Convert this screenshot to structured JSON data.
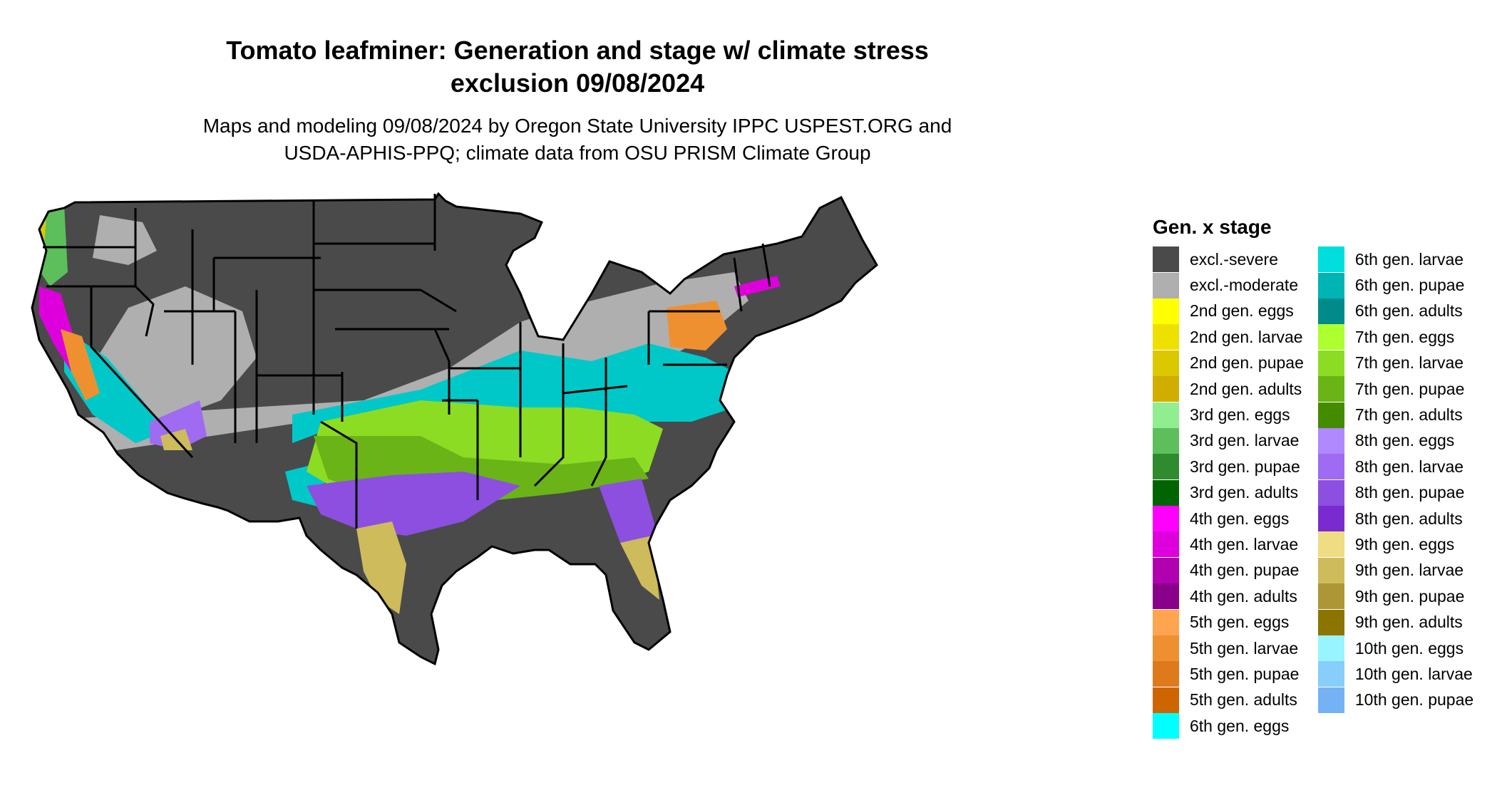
{
  "title_line1": "Tomato leafminer: Generation and stage w/ climate stress",
  "title_line2": "exclusion 09/08/2024",
  "subtitle_line1": "Maps and modeling 09/08/2024 by Oregon State University IPPC USPEST.ORG and",
  "subtitle_line2": "USDA-APHIS-PPQ; climate data from OSU PRISM Climate Group",
  "legend": {
    "title": "Gen. x stage",
    "col1": [
      {
        "label": "excl.-severe",
        "color": "#4a4a4a"
      },
      {
        "label": "excl.-moderate",
        "color": "#afafaf"
      },
      {
        "label": "2nd gen. eggs",
        "color": "#ffff00"
      },
      {
        "label": "2nd gen. larvae",
        "color": "#eee100"
      },
      {
        "label": "2nd gen. pupae",
        "color": "#dcc800"
      },
      {
        "label": "2nd gen. adults",
        "color": "#cfae00"
      },
      {
        "label": "3rd gen. eggs",
        "color": "#90ee90"
      },
      {
        "label": "3rd gen. larvae",
        "color": "#5cbf5c"
      },
      {
        "label": "3rd gen. pupae",
        "color": "#2e8b2e"
      },
      {
        "label": "3rd gen. adults",
        "color": "#006400"
      },
      {
        "label": "4th gen. eggs",
        "color": "#ff00ff"
      },
      {
        "label": "4th gen. larvae",
        "color": "#dd00dd"
      },
      {
        "label": "4th gen. pupae",
        "color": "#b000b0"
      },
      {
        "label": "4th gen. adults",
        "color": "#8b008b"
      },
      {
        "label": "5th gen. eggs",
        "color": "#ffa54f"
      },
      {
        "label": "5th gen. larvae",
        "color": "#ee9030"
      },
      {
        "label": "5th gen. pupae",
        "color": "#de7a1c"
      },
      {
        "label": "5th gen. adults",
        "color": "#cd6600"
      },
      {
        "label": "6th gen. eggs",
        "color": "#00ffff"
      }
    ],
    "col2": [
      {
        "label": "6th gen. larvae",
        "color": "#00dddd"
      },
      {
        "label": "6th gen. pupae",
        "color": "#00b4b4"
      },
      {
        "label": "6th gen. adults",
        "color": "#008b8b"
      },
      {
        "label": "7th gen. eggs",
        "color": "#adff2f"
      },
      {
        "label": "7th gen. larvae",
        "color": "#8cdc24"
      },
      {
        "label": "7th gen. pupae",
        "color": "#6ab418"
      },
      {
        "label": "7th gen. adults",
        "color": "#458b00"
      },
      {
        "label": "8th gen. eggs",
        "color": "#b088ff"
      },
      {
        "label": "8th gen. larvae",
        "color": "#9f6bf2"
      },
      {
        "label": "8th gen. pupae",
        "color": "#8c4fe0"
      },
      {
        "label": "8th gen. adults",
        "color": "#7a2bd0"
      },
      {
        "label": "9th gen. eggs",
        "color": "#eedd82"
      },
      {
        "label": "9th gen. larvae",
        "color": "#cdbb5c"
      },
      {
        "label": "9th gen. pupae",
        "color": "#ad9636"
      },
      {
        "label": "9th gen. adults",
        "color": "#8b7500"
      },
      {
        "label": "10th gen. eggs",
        "color": "#98f5ff"
      },
      {
        "label": "10th gen. larvae",
        "color": "#87cefa"
      },
      {
        "label": "10th gen. pupae",
        "color": "#74b2f5"
      }
    ]
  }
}
